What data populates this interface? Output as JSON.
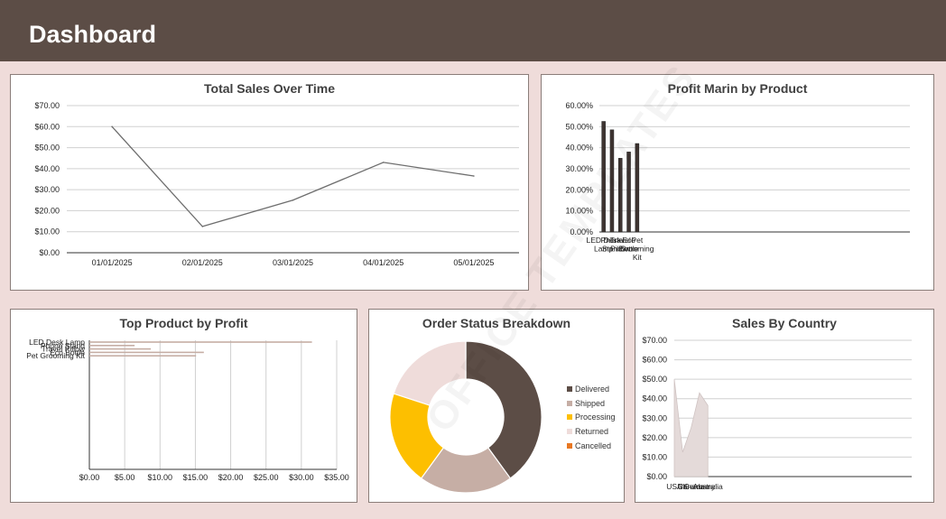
{
  "header": {
    "title": "Dashboard"
  },
  "watermark": "OFFICE TEMPLATES",
  "colors": {
    "header_bg": "#5c4d46",
    "page_bg": "#efdcda",
    "line": "#6e6e6e",
    "bar_dark": "#3e3431",
    "bar_light": "#c6aea5",
    "area_fill": "#e4dad9"
  },
  "panels": {
    "sales_over_time": {
      "title": "Total Sales Over Time"
    },
    "profit_margin": {
      "title": "Profit Marin by Product"
    },
    "top_product": {
      "title": "Top Product by Profit"
    },
    "order_status": {
      "title": "Order Status Breakdown"
    },
    "sales_country": {
      "title": "Sales By Country"
    }
  },
  "chart_data": [
    {
      "id": "sales_over_time",
      "type": "line",
      "title": "Total Sales Over Time",
      "categories": [
        "01/01/2025",
        "02/01/2025",
        "03/01/2025",
        "04/01/2025",
        "05/01/2025"
      ],
      "values": [
        60,
        12.5,
        25,
        43,
        36.5
      ],
      "ylim": [
        0,
        70
      ],
      "yticks": [
        "$0.00",
        "$10.00",
        "$20.00",
        "$30.00",
        "$40.00",
        "$50.00",
        "$60.00",
        "$70.00"
      ],
      "grid": true
    },
    {
      "id": "profit_margin",
      "type": "bar",
      "title": "Profit Marin by Product",
      "categories": [
        "LED Desk Lamp",
        "Phone Stand",
        "Travel Pillow",
        "Eco Bottle",
        "Pet Grooming Kit"
      ],
      "values": [
        0.525,
        0.485,
        0.35,
        0.38,
        0.42
      ],
      "ylim": [
        0,
        0.6
      ],
      "yticks": [
        "0.00%",
        "10.00%",
        "20.00%",
        "30.00%",
        "40.00%",
        "50.00%",
        "60.00%"
      ],
      "tick_lines": [
        [
          "LED Desk",
          "Lamp"
        ],
        [
          "Phone",
          "Stand"
        ],
        [
          "Travel",
          "Pillow"
        ],
        [
          "Eco",
          "Bottle"
        ],
        [
          "Pet",
          "Grooming",
          "Kit"
        ]
      ],
      "grid": true
    },
    {
      "id": "top_product",
      "type": "bar",
      "orientation": "horizontal",
      "title": "Top Product by Profit",
      "categories": [
        "LED Desk Lamp",
        "Phone Stand",
        "Travel Pillow",
        "Eco Bottle",
        "Pet Grooming Kit"
      ],
      "values": [
        31.5,
        6.4,
        8.7,
        16.2,
        15.1
      ],
      "xlim": [
        0,
        35
      ],
      "xticks": [
        "$0.00",
        "$5.00",
        "$10.00",
        "$15.00",
        "$20.00",
        "$25.00",
        "$30.00",
        "$35.00"
      ],
      "grid": true
    },
    {
      "id": "order_status",
      "type": "pie",
      "title": "Order Status Breakdown",
      "categories": [
        "Delivered",
        "Shipped",
        "Processing",
        "Returned",
        "Cancelled"
      ],
      "values": [
        40,
        20,
        20,
        20,
        0
      ],
      "colors": [
        "#5c4d46",
        "#c6aea5",
        "#fdbf00",
        "#efdcda",
        "#e87722"
      ],
      "legend": "right"
    },
    {
      "id": "sales_country",
      "type": "area",
      "title": "Sales By Country",
      "categories": [
        "USA",
        "UK",
        "Canada",
        "Germany",
        "Australia"
      ],
      "values": [
        50,
        12.5,
        25,
        43,
        36.5
      ],
      "ylim": [
        0,
        70
      ],
      "yticks": [
        "$0.00",
        "$10.00",
        "$20.00",
        "$30.00",
        "$40.00",
        "$50.00",
        "$60.00",
        "$70.00"
      ],
      "grid": true
    }
  ]
}
